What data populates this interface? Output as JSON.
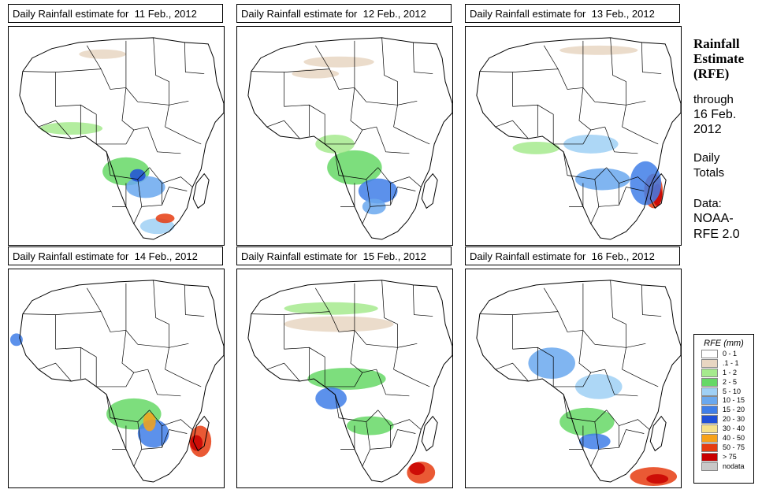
{
  "panels": [
    {
      "title": "Daily Rainfall estimate for  11 Feb., 2012"
    },
    {
      "title": "Daily Rainfall estimate for  12 Feb., 2012"
    },
    {
      "title": "Daily Rainfall estimate for  13 Feb., 2012"
    },
    {
      "title": "Daily Rainfall estimate for  14 Feb., 2012"
    },
    {
      "title": "Daily Rainfall estimate for  15 Feb., 2012"
    },
    {
      "title": "Daily Rainfall estimate for  16 Feb., 2012"
    }
  ],
  "sidebar": {
    "title_line1": "Rainfall",
    "title_line2": "Estimate",
    "title_line3": "(RFE)",
    "through": "through",
    "date_line1": "16 Feb.",
    "date_line2": "2012",
    "daily": "Daily",
    "totals": "Totals",
    "data_label": "Data:",
    "source_line1": "NOAA-",
    "source_line2": "RFE 2.0"
  },
  "legend": {
    "title": "RFE (mm)",
    "items": [
      {
        "label": "0 - 1",
        "color": "#ffffff"
      },
      {
        "label": ".1 - 1",
        "color": "#e8d6c2"
      },
      {
        "label": "1 - 2",
        "color": "#a6ea8e"
      },
      {
        "label": "2 - 5",
        "color": "#66d866"
      },
      {
        "label": "5 - 10",
        "color": "#9fd0f5"
      },
      {
        "label": "10 - 15",
        "color": "#6aa8ee"
      },
      {
        "label": "15 - 20",
        "color": "#3f7ee8"
      },
      {
        "label": "20 - 30",
        "color": "#1f4fd8"
      },
      {
        "label": "30 - 40",
        "color": "#f5e08a"
      },
      {
        "label": "40 - 50",
        "color": "#f7a21a"
      },
      {
        "label": "50 - 75",
        "color": "#e63c10"
      },
      {
        "label": "> 75",
        "color": "#c80000"
      },
      {
        "label": "nodata",
        "color": "#c8c8c8"
      }
    ]
  }
}
